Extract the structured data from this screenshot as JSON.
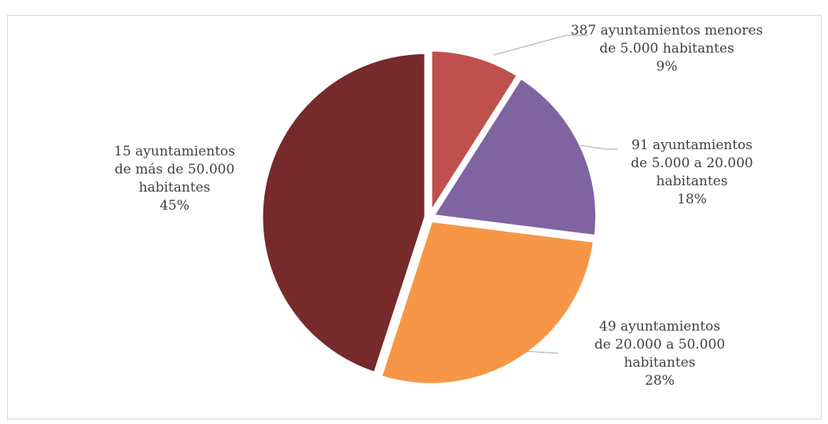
{
  "chart_data": {
    "type": "pie",
    "start_angle_deg": 0,
    "direction": "clockwise",
    "slices": [
      {
        "label_lines": [
          "387 ayuntamientos menores",
          "de 5.000 habitantes"
        ],
        "percent_label": "9%",
        "value": 9,
        "color": "#c0504d"
      },
      {
        "label_lines": [
          "91 ayuntamientos",
          "de 5.000 a 20.000",
          "habitantes"
        ],
        "percent_label": "18%",
        "value": 18,
        "color": "#8064a2"
      },
      {
        "label_lines": [
          "49 ayuntamientos",
          "de 20.000 a 50.000",
          "habitantes"
        ],
        "percent_label": "28%",
        "value": 28,
        "color": "#f79646"
      },
      {
        "label_lines": [
          "15 ayuntamientos",
          "de más de 50.000",
          "habitantes"
        ],
        "percent_label": "45%",
        "value": 45,
        "color": "#772a2a"
      }
    ]
  }
}
